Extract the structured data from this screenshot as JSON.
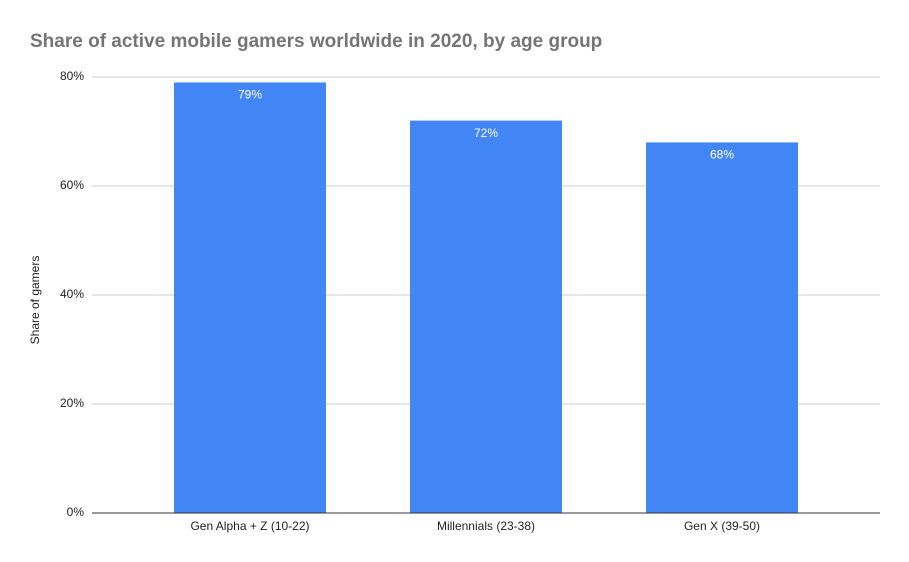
{
  "chart_data": {
    "type": "bar",
    "title": "Share of active mobile gamers worldwide in 2020, by age group",
    "y_label": "Share of gamers",
    "categories": [
      "Gen Alpha + Z (10-22)",
      "Millennials (23-38)",
      "Gen X (39-50)"
    ],
    "values": [
      79,
      72,
      68
    ],
    "value_labels": [
      "79%",
      "72%",
      "68%"
    ],
    "color": "#4285f4",
    "ylim": [
      0,
      80
    ],
    "yticks": [
      {
        "value": 0,
        "label": "0%"
      },
      {
        "value": 20,
        "label": "20%"
      },
      {
        "value": 40,
        "label": "40%"
      },
      {
        "value": 60,
        "label": "60%"
      },
      {
        "value": 80,
        "label": "80%"
      }
    ],
    "grid": true
  }
}
